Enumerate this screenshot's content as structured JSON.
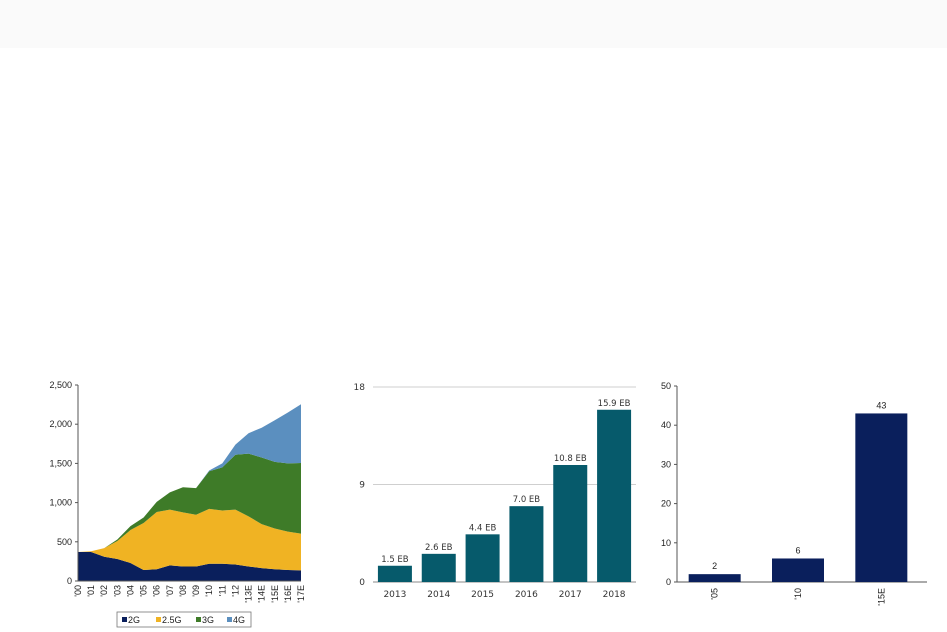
{
  "chart_data": [
    {
      "type": "area",
      "stacked": true,
      "categories": [
        "'00",
        "'01",
        "'02",
        "'03",
        "'04",
        "'05",
        "'06",
        "'07",
        "'08",
        "'09",
        "'10",
        "'11",
        "'12",
        "'13E",
        "'14E",
        "'15E",
        "'16E",
        "'17E"
      ],
      "series": [
        {
          "name": "2G",
          "color": "#0a1f5c",
          "values": [
            370,
            370,
            310,
            280,
            230,
            140,
            150,
            200,
            185,
            185,
            220,
            220,
            210,
            185,
            165,
            150,
            140,
            135
          ]
        },
        {
          "name": "2.5G",
          "color": "#f0b323",
          "values": [
            0,
            10,
            110,
            230,
            420,
            600,
            730,
            710,
            690,
            660,
            700,
            680,
            700,
            640,
            560,
            520,
            490,
            470
          ]
        },
        {
          "name": "3G",
          "color": "#3e7b28",
          "values": [
            0,
            0,
            0,
            20,
            50,
            70,
            130,
            220,
            320,
            340,
            480,
            550,
            700,
            800,
            850,
            850,
            870,
            900
          ]
        },
        {
          "name": "4G",
          "color": "#5b8fbf",
          "values": [
            0,
            0,
            0,
            0,
            0,
            0,
            0,
            0,
            0,
            0,
            10,
            50,
            130,
            260,
            380,
            530,
            650,
            750
          ]
        }
      ],
      "yticks": [
        "0",
        "500",
        "1,000",
        "1,500",
        "2,000",
        "2,500"
      ],
      "ylim": [
        0,
        2500
      ],
      "grid": false,
      "legend": "bottom"
    },
    {
      "type": "bar",
      "categories": [
        "2013",
        "2014",
        "2015",
        "2016",
        "2017",
        "2018"
      ],
      "values": [
        1.5,
        2.6,
        4.4,
        7.0,
        10.8,
        15.9
      ],
      "data_labels": [
        "1.5 EB",
        "2.6 EB",
        "4.4 EB",
        "7.0 EB",
        "10.8 EB",
        "15.9 EB"
      ],
      "yticks": [
        "0",
        "9",
        "18"
      ],
      "ylim": [
        0,
        18
      ],
      "grid": true,
      "color": "#065a6b"
    },
    {
      "type": "bar",
      "categories": [
        "'05",
        "'10",
        "'15E"
      ],
      "values": [
        2,
        6,
        43
      ],
      "data_labels": [
        "2",
        "6",
        "43"
      ],
      "yticks": [
        "0",
        "10",
        "20",
        "30",
        "40",
        "50"
      ],
      "ylim": [
        0,
        50
      ],
      "grid": false,
      "color": "#0a1f5c"
    }
  ]
}
